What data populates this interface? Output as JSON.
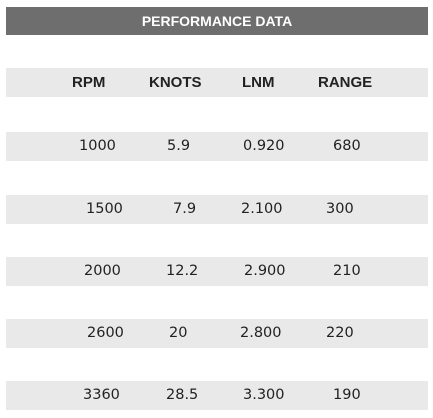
{
  "title": "PERFORMANCE DATA",
  "columns": [
    "RPM",
    "KNOTS",
    "LNM",
    "RANGE"
  ],
  "rows": [
    [
      "1000",
      "5.9",
      "0.920",
      "680"
    ],
    [
      "1500",
      "7.9",
      "2.100",
      "300"
    ],
    [
      "2000",
      "12.2",
      "2.900",
      "210"
    ],
    [
      "2600",
      "20",
      "2.800",
      "220"
    ],
    [
      "3360",
      "28.5",
      "3.300",
      "190"
    ]
  ]
}
